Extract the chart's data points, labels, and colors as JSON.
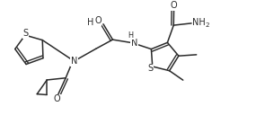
{
  "bg_color": "#ffffff",
  "line_color": "#2a2a2a",
  "line_width": 1.1,
  "font_size": 7.0,
  "fig_width": 2.85,
  "fig_height": 1.48,
  "dpi": 100,
  "xlim": [
    0,
    10
  ],
  "ylim": [
    0,
    5.2
  ]
}
